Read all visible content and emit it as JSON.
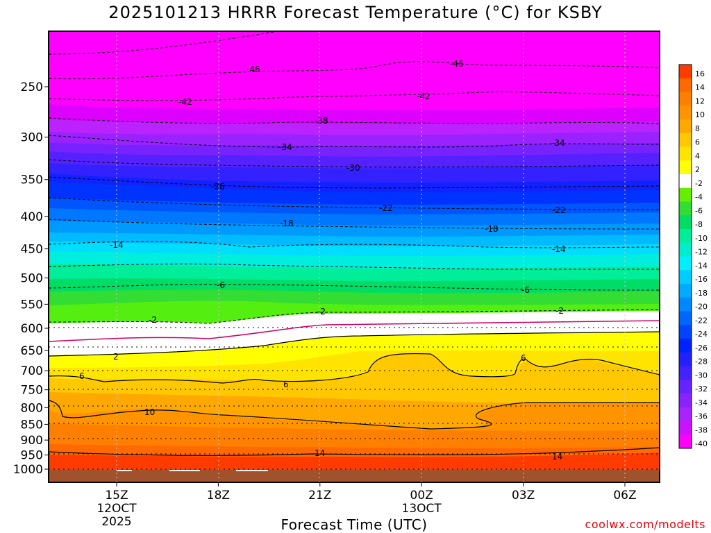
{
  "chart_data": {
    "type": "contour",
    "title": "2025101213 HRRR Forecast Temperature (°C) for KSBY",
    "xlabel": "Forecast Time (UTC)",
    "ylabel": "",
    "y_axis_ticks": [
      250,
      300,
      350,
      400,
      450,
      500,
      550,
      600,
      650,
      700,
      750,
      800,
      850,
      900,
      950,
      1000
    ],
    "x_axis_ticks": [
      {
        "label": "15Z",
        "sub1": "12OCT",
        "sub2": "2025"
      },
      {
        "label": "18Z",
        "sub1": "",
        "sub2": ""
      },
      {
        "label": "21Z",
        "sub1": "",
        "sub2": ""
      },
      {
        "label": "00Z",
        "sub1": "13OCT",
        "sub2": ""
      },
      {
        "label": "03Z",
        "sub1": "",
        "sub2": ""
      },
      {
        "label": "06Z",
        "sub1": "",
        "sub2": ""
      }
    ],
    "colorbar": {
      "labels": [
        "16",
        "14",
        "12",
        "10",
        "8",
        "6",
        "4",
        "2",
        "-2",
        "-4",
        "-6",
        "-8",
        "-10",
        "-12",
        "-14",
        "-16",
        "-18",
        "-20",
        "-22",
        "-24",
        "-26",
        "-28",
        "-30",
        "-32",
        "-34",
        "-36",
        "-38",
        "-40"
      ],
      "colors": [
        "#ff3b00",
        "#ff6a00",
        "#ff8000",
        "#ff9400",
        "#ffa800",
        "#ffc800",
        "#ffe400",
        "#ffff00",
        "#ffffff",
        "#66ee00",
        "#33dd33",
        "#00dd66",
        "#00ee99",
        "#00eecc",
        "#00eeff",
        "#00ccff",
        "#00aaff",
        "#0088ff",
        "#0066ff",
        "#0044ff",
        "#0022ff",
        "#2222ff",
        "#4422ff",
        "#6622ff",
        "#8822ff",
        "#aa22ff",
        "#cc11ff",
        "#ff00ff"
      ]
    },
    "contour_labels": [
      {
        "text": "-46"
      },
      {
        "text": "-46"
      },
      {
        "text": "-42"
      },
      {
        "text": "-42"
      },
      {
        "text": "-38"
      },
      {
        "text": "-34"
      },
      {
        "text": "-34"
      },
      {
        "text": "-30"
      },
      {
        "text": "-26"
      },
      {
        "text": "-22"
      },
      {
        "text": "-22"
      },
      {
        "text": "-18"
      },
      {
        "text": "-18"
      },
      {
        "text": "-14"
      },
      {
        "text": "-14"
      },
      {
        "text": "-6"
      },
      {
        "text": "-6"
      },
      {
        "text": "-2"
      },
      {
        "text": "-2"
      },
      {
        "text": "-2"
      },
      {
        "text": "2"
      },
      {
        "text": "6"
      },
      {
        "text": "6"
      },
      {
        "text": "6"
      },
      {
        "text": "10"
      },
      {
        "text": "14"
      },
      {
        "text": "14"
      }
    ],
    "credit": "coolwx.com/modelts"
  }
}
